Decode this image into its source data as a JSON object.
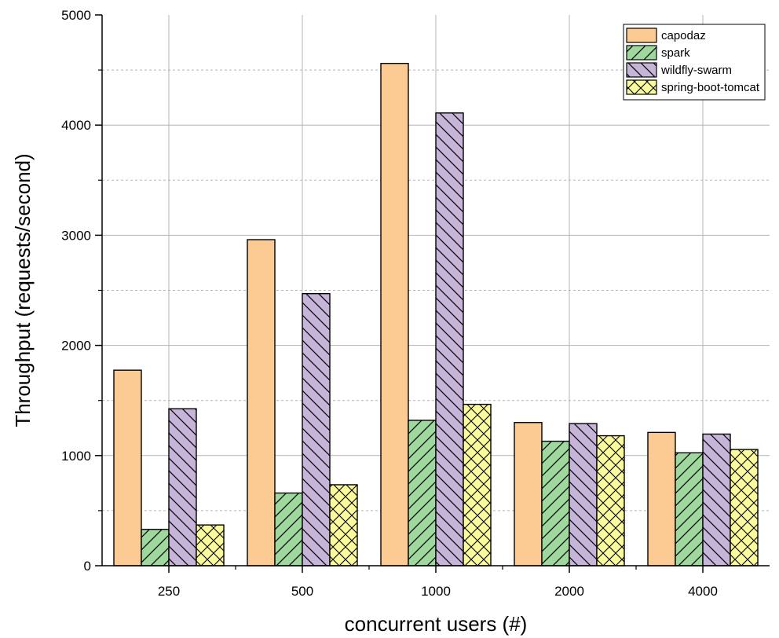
{
  "chart_data": {
    "type": "bar",
    "title": "",
    "xlabel": "concurrent users (#)",
    "ylabel": "Throughput (requests/second)",
    "ylim": [
      0,
      5000
    ],
    "yticks": [
      0,
      1000,
      2000,
      3000,
      4000,
      5000
    ],
    "grid": true,
    "legend_position": "top-right",
    "categories": [
      "250",
      "500",
      "1000",
      "2000",
      "4000"
    ],
    "series": [
      {
        "name": "capodaz",
        "color": "#fccb93",
        "pattern": "none",
        "values": [
          1775,
          2960,
          4560,
          1300,
          1210
        ]
      },
      {
        "name": "spark",
        "color": "#9fd89d",
        "pattern": "hatch-forward",
        "values": [
          330,
          660,
          1320,
          1130,
          1025
        ]
      },
      {
        "name": "wildfly-swarm",
        "color": "#c6b5d8",
        "pattern": "hatch-back",
        "values": [
          1425,
          2470,
          4110,
          1290,
          1195
        ]
      },
      {
        "name": "spring-boot-tomcat",
        "color": "#fafa9c",
        "pattern": "crosshatch",
        "values": [
          370,
          735,
          1465,
          1180,
          1055
        ]
      }
    ]
  }
}
